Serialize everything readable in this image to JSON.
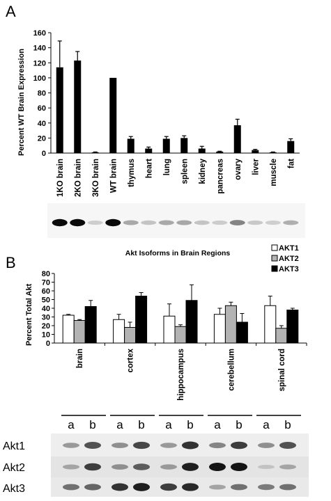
{
  "panels": [
    {
      "letter": "A"
    },
    {
      "letter": "B"
    }
  ],
  "legend": {
    "items": [
      {
        "label": "AKT1",
        "color": "#ffffff"
      },
      {
        "label": "AKT2",
        "color": "#b3b3b3"
      },
      {
        "label": "AKT3",
        "color": "#000000"
      }
    ]
  },
  "blots_b": {
    "lane_labels": [
      "a",
      "b",
      "a",
      "b",
      "a",
      "b",
      "a",
      "b",
      "a",
      "b"
    ],
    "rows": [
      "Akt1",
      "Akt2",
      "Akt3"
    ]
  },
  "chart_data": [
    {
      "type": "bar",
      "title": "",
      "xlabel": "",
      "ylabel": "Percent WT Brain Expression",
      "ylim": [
        0,
        160
      ],
      "yticks": [
        0,
        20,
        40,
        60,
        80,
        100,
        120,
        140,
        160
      ],
      "grid": false,
      "categories": [
        "1KO brain",
        "2KO brain",
        "3KO brain",
        "WT brain",
        "thymus",
        "heart",
        "lung",
        "spleen",
        "kidney",
        "pancreas",
        "ovary",
        "liver",
        "muscle",
        "fat"
      ],
      "values": [
        114,
        123,
        1,
        100,
        19,
        6,
        19,
        20,
        6,
        2,
        37,
        4,
        1,
        16
      ],
      "errors": [
        35,
        12,
        0.5,
        0,
        3,
        2,
        3,
        3,
        3,
        0.5,
        8,
        1,
        0.5,
        3
      ],
      "bar_color": "#000000"
    },
    {
      "type": "bar",
      "title": "Akt Isoforms in Brain Regions",
      "xlabel": "",
      "ylabel": "Percent Total Akt",
      "ylim": [
        0,
        80
      ],
      "yticks": [
        0,
        10,
        20,
        30,
        40,
        50,
        60,
        70,
        80
      ],
      "grid": false,
      "legend_position": "top-right",
      "categories": [
        "brain",
        "cortex",
        "hippocampus",
        "cerebellum",
        "spinal cord"
      ],
      "series": [
        {
          "name": "AKT1",
          "color": "#ffffff",
          "values": [
            32,
            27,
            31,
            33,
            43
          ],
          "errors": [
            1,
            6,
            14,
            7,
            11
          ]
        },
        {
          "name": "AKT2",
          "color": "#b3b3b3",
          "values": [
            26,
            18,
            19,
            43,
            17
          ],
          "errors": [
            1,
            6,
            2,
            4,
            3
          ]
        },
        {
          "name": "AKT3",
          "color": "#000000",
          "values": [
            42,
            54,
            49,
            24,
            38
          ],
          "errors": [
            7,
            4,
            18,
            10,
            2
          ]
        }
      ]
    }
  ]
}
